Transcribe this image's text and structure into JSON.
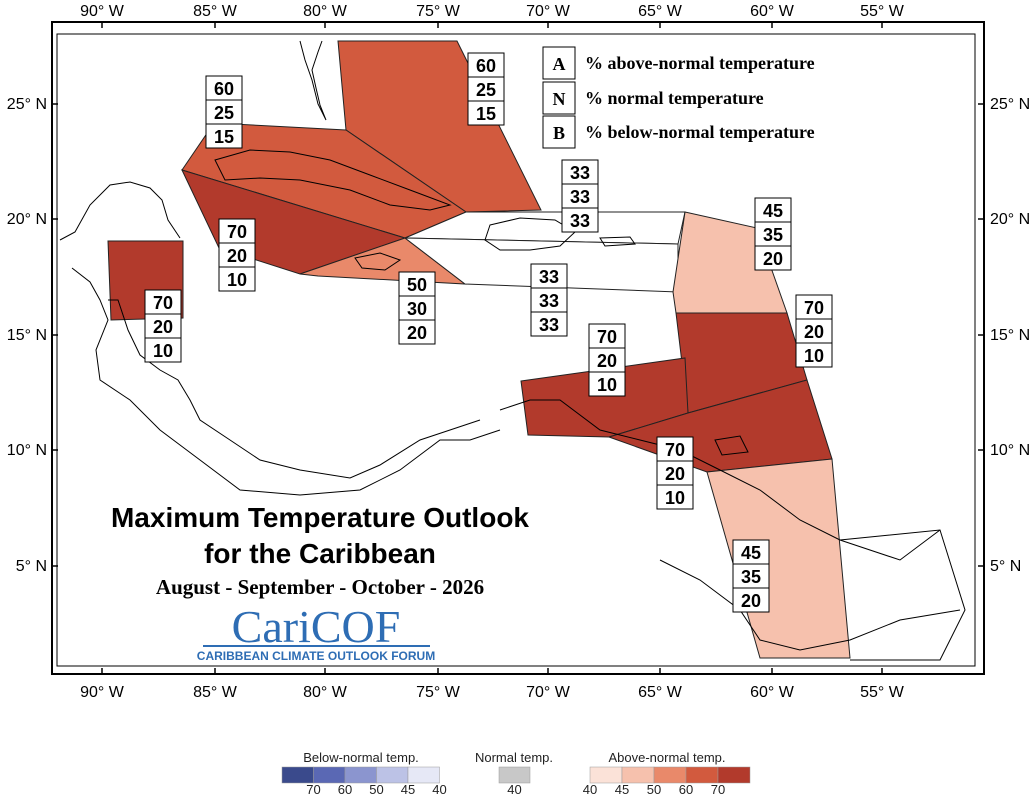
{
  "title_line1": "Maximum Temperature Outlook",
  "title_line2": "for the Caribbean",
  "subtitle": "August - September - October - 2026",
  "logo": {
    "name": "CariCOF",
    "subtitle": "CARIBBEAN CLIMATE OUTLOOK FORUM",
    "color": "#2e6db4"
  },
  "axes": {
    "lon_labels": [
      "90° W",
      "85° W",
      "80° W",
      "75° W",
      "70° W",
      "65° W",
      "60° W",
      "55° W"
    ],
    "lat_labels": [
      "25° N",
      "20° N",
      "15° N",
      "10° N",
      "5° N"
    ]
  },
  "key": [
    {
      "letter": "A",
      "text": "% above-normal temperature"
    },
    {
      "letter": "N",
      "text": "% normal temperature"
    },
    {
      "letter": "B",
      "text": "% below-normal temperature"
    }
  ],
  "regions": [
    {
      "id": "bahamas",
      "A": "60",
      "N": "25",
      "B": "15",
      "category": "above",
      "level": 60
    },
    {
      "id": "north-cuba",
      "A": "60",
      "N": "25",
      "B": "15",
      "category": "above",
      "level": 60
    },
    {
      "id": "south-cuba-cayman",
      "A": "70",
      "N": "20",
      "B": "10",
      "category": "above",
      "level": 70
    },
    {
      "id": "belize",
      "A": "70",
      "N": "20",
      "B": "10",
      "category": "above",
      "level": 70
    },
    {
      "id": "jamaica",
      "A": "50",
      "N": "30",
      "B": "20",
      "category": "above",
      "level": 50
    },
    {
      "id": "hispaniola-north",
      "A": "33",
      "N": "33",
      "B": "33",
      "category": "climatology",
      "level": 0
    },
    {
      "id": "hispaniola-puerto-rico",
      "A": "33",
      "N": "33",
      "B": "33",
      "category": "climatology",
      "level": 0
    },
    {
      "id": "leeward-islands",
      "A": "45",
      "N": "35",
      "B": "20",
      "category": "above",
      "level": 45
    },
    {
      "id": "windward-islands",
      "A": "70",
      "N": "20",
      "B": "10",
      "category": "above",
      "level": 70
    },
    {
      "id": "abc-islands",
      "A": "70",
      "N": "20",
      "B": "10",
      "category": "above",
      "level": 70
    },
    {
      "id": "trinidad-barbados",
      "A": "70",
      "N": "20",
      "B": "10",
      "category": "above",
      "level": 70
    },
    {
      "id": "guianas",
      "A": "45",
      "N": "35",
      "B": "20",
      "category": "above",
      "level": 45
    }
  ],
  "scales": {
    "below": {
      "title": "Below-normal temp.",
      "ticks": [
        "70",
        "60",
        "50",
        "45",
        "40"
      ],
      "colors": [
        "#3a4a8c",
        "#5a68b4",
        "#8b95cf",
        "#bcc2e6",
        "#e6e8f6"
      ]
    },
    "normal": {
      "title": "Normal temp.",
      "ticks": [
        "40"
      ],
      "colors": [
        "#c8c8c8"
      ]
    },
    "above": {
      "title": "Above-normal temp.",
      "ticks": [
        "40",
        "45",
        "50",
        "60",
        "70"
      ],
      "colors": [
        "#fbe2d8",
        "#f6c1ad",
        "#e9896a",
        "#d25a3e",
        "#b23a2c"
      ]
    }
  },
  "colors": {
    "level_45": "#f6c1ad",
    "level_50": "#e9896a",
    "level_60": "#d25a3e",
    "level_70": "#b23a2c",
    "climatology": "#ffffff"
  }
}
